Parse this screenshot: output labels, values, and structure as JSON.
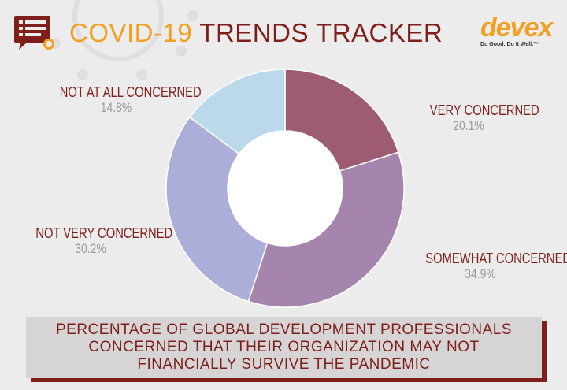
{
  "header": {
    "title_part1": "COVID-19",
    "title_part2": "TRENDS TRACKER",
    "logo_text": "devex",
    "logo_tagline": "Do Good. Do It Well.™"
  },
  "colors": {
    "accent_orange": "#f2a023",
    "brand_maroon": "#7e1f1b",
    "background": "#ececec"
  },
  "chart_data": {
    "type": "pie",
    "donut": true,
    "categories": [
      "VERY CONCERNED",
      "SOMEWHAT CONCERNED",
      "NOT VERY CONCERNED",
      "NOT AT ALL CONCERNED"
    ],
    "values": [
      20.1,
      34.9,
      30.2,
      14.8
    ],
    "value_labels": [
      "20.1%",
      "34.9%",
      "30.2%",
      "14.8%"
    ],
    "colors": [
      "#9e5c72",
      "#a585ad",
      "#abaed8",
      "#bcd9ec"
    ]
  },
  "caption": "PERCENTAGE OF GLOBAL DEVELOPMENT PROFESSIONALS CONCERNED THAT THEIR ORGANIZATION MAY NOT FINANCIALLY SURVIVE THE PANDEMIC"
}
